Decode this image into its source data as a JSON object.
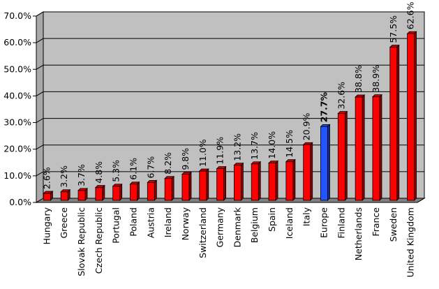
{
  "chart_data": {
    "type": "bar",
    "title": "",
    "xlabel": "",
    "ylabel": "",
    "ylim": [
      0,
      70
    ],
    "y_tick_format": "percent_one_decimal",
    "y_ticks": [
      "0.0%",
      "10.0%",
      "20.0%",
      "30.0%",
      "40.0%",
      "50.0%",
      "60.0%",
      "70.0%"
    ],
    "grid": "horizontal",
    "style": "3d",
    "colors": {
      "default": "#ff0000",
      "highlight": "#2255ff",
      "plot_background": "#c0c0c0",
      "floor": "#808080"
    },
    "categories": [
      "Hungary",
      "Greece",
      "Slovak Republic",
      "Czech Republic",
      "Portugal",
      "Poland",
      "Austria",
      "Ireland",
      "Norway",
      "Switzerland",
      "Germany",
      "Denmark",
      "Belgium",
      "Spain",
      "Iceland",
      "Italy",
      "Europe",
      "Finland",
      "Netherlands",
      "France",
      "Sweden",
      "United Kingdom"
    ],
    "values": [
      2.6,
      3.2,
      3.7,
      4.8,
      5.3,
      6.1,
      6.7,
      8.2,
      9.8,
      11.0,
      11.9,
      13.2,
      13.7,
      14.0,
      14.5,
      20.9,
      27.7,
      32.6,
      38.8,
      38.9,
      57.5,
      62.6
    ],
    "data_labels": [
      "2.6%",
      "3.2%",
      "3.7%",
      "4.8%",
      "5.3%",
      "6.1%",
      "6.7%",
      "8.2%",
      "9.8%",
      "11.0%",
      "11.9%",
      "13.2%",
      "13.7%",
      "14.0%",
      "14.5%",
      "20.9%",
      "27.7%",
      "32.6%",
      "38.8%",
      "38.9%",
      "57.5%",
      "62.6%"
    ],
    "highlight": "Europe"
  }
}
